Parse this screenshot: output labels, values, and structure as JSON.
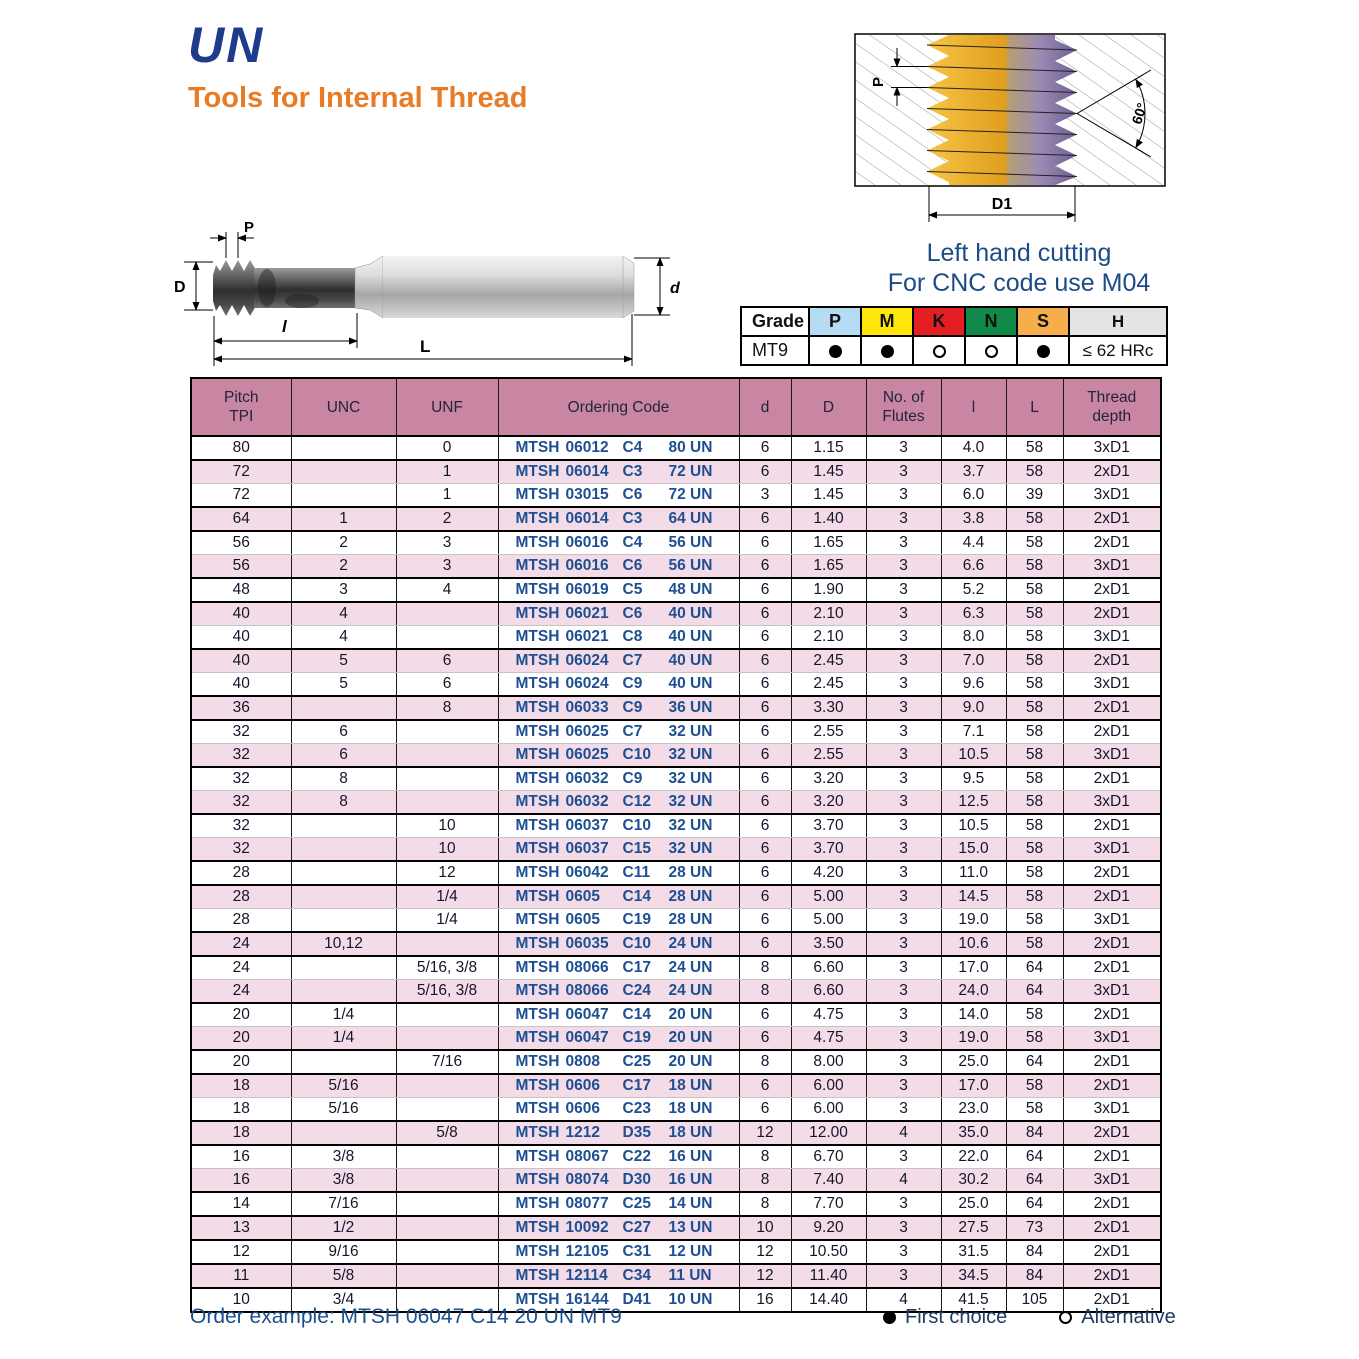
{
  "page": {
    "title": "UN",
    "subtitle": "Tools for Internal Thread",
    "note_line1": "Left hand cutting",
    "note_line2": "For CNC code use M04",
    "order_example": "Order example: MTSH 06047 C14 20 UN MT9",
    "legend": {
      "first_choice": "First choice",
      "alternative": "Alternative"
    }
  },
  "colors": {
    "title_blue": "#1e3c8c",
    "subtitle_orange": "#e97b24",
    "note_blue": "#1c4b86",
    "code_blue": "#1d4f92",
    "table_header_mauve": "#c986a3",
    "row_pink": "#f3dce7",
    "grade_p": "#b5dcf2",
    "grade_m": "#ffe60a",
    "grade_k": "#e41e22",
    "grade_n": "#108a49",
    "grade_s": "#f6ad4b",
    "grade_h": "#e4e4e4"
  },
  "diagram_tool": {
    "p": "P",
    "dia": "D",
    "thread_len": "l",
    "overall_len": "L",
    "shank_dia": "d"
  },
  "diagram_thread": {
    "p": "P",
    "angle": "60°",
    "d1": "D1"
  },
  "grade_table": {
    "headers": [
      "Grade",
      "P",
      "M",
      "K",
      "N",
      "S",
      "H"
    ],
    "header_colors": [
      "#ffffff",
      "#b5dcf2",
      "#ffe60a",
      "#e41e22",
      "#108a49",
      "#f6ad4b",
      "#e4e4e4"
    ],
    "row_label": "MT9",
    "values": [
      "filled",
      "filled",
      "open",
      "open",
      "filled"
    ],
    "hardness": "≤ 62 HRc"
  },
  "table": {
    "headers": [
      "Pitch\nTPI",
      "UNC",
      "UNF",
      "Ordering Code",
      "d",
      "D",
      "No. of\nFlutes",
      "l",
      "L",
      "Thread\ndepth"
    ],
    "rows": [
      {
        "tpi": "80",
        "unc": "",
        "unf": "0",
        "code": "MTSH 06012 C4 80 UN",
        "d": "6",
        "D": "1.15",
        "flutes": "3",
        "l": "4.0",
        "L": "58",
        "depth": "3xD1",
        "end": true
      },
      {
        "tpi": "72",
        "unc": "",
        "unf": "1",
        "code": "MTSH 06014 C3 72 UN",
        "d": "6",
        "D": "1.45",
        "flutes": "3",
        "l": "3.7",
        "L": "58",
        "depth": "2xD1",
        "end": false
      },
      {
        "tpi": "72",
        "unc": "",
        "unf": "1",
        "code": "MTSH 03015 C6 72 UN",
        "d": "3",
        "D": "1.45",
        "flutes": "3",
        "l": "6.0",
        "L": "39",
        "depth": "3xD1",
        "end": true
      },
      {
        "tpi": "64",
        "unc": "1",
        "unf": "2",
        "code": "MTSH 06014 C3 64 UN",
        "d": "6",
        "D": "1.40",
        "flutes": "3",
        "l": "3.8",
        "L": "58",
        "depth": "2xD1",
        "end": true
      },
      {
        "tpi": "56",
        "unc": "2",
        "unf": "3",
        "code": "MTSH 06016 C4 56 UN",
        "d": "6",
        "D": "1.65",
        "flutes": "3",
        "l": "4.4",
        "L": "58",
        "depth": "2xD1",
        "end": false
      },
      {
        "tpi": "56",
        "unc": "2",
        "unf": "3",
        "code": "MTSH 06016 C6 56 UN",
        "d": "6",
        "D": "1.65",
        "flutes": "3",
        "l": "6.6",
        "L": "58",
        "depth": "3xD1",
        "end": true
      },
      {
        "tpi": "48",
        "unc": "3",
        "unf": "4",
        "code": "MTSH 06019 C5 48 UN",
        "d": "6",
        "D": "1.90",
        "flutes": "3",
        "l": "5.2",
        "L": "58",
        "depth": "2xD1",
        "end": true
      },
      {
        "tpi": "40",
        "unc": "4",
        "unf": "",
        "code": "MTSH 06021 C6 40 UN",
        "d": "6",
        "D": "2.10",
        "flutes": "3",
        "l": "6.3",
        "L": "58",
        "depth": "2xD1",
        "end": false
      },
      {
        "tpi": "40",
        "unc": "4",
        "unf": "",
        "code": "MTSH 06021 C8 40 UN",
        "d": "6",
        "D": "2.10",
        "flutes": "3",
        "l": "8.0",
        "L": "58",
        "depth": "3xD1",
        "end": true
      },
      {
        "tpi": "40",
        "unc": "5",
        "unf": "6",
        "code": "MTSH 06024 C7 40 UN",
        "d": "6",
        "D": "2.45",
        "flutes": "3",
        "l": "7.0",
        "L": "58",
        "depth": "2xD1",
        "end": false
      },
      {
        "tpi": "40",
        "unc": "5",
        "unf": "6",
        "code": "MTSH 06024 C9 40 UN",
        "d": "6",
        "D": "2.45",
        "flutes": "3",
        "l": "9.6",
        "L": "58",
        "depth": "3xD1",
        "end": true
      },
      {
        "tpi": "36",
        "unc": "",
        "unf": "8",
        "code": "MTSH 06033 C9 36 UN",
        "d": "6",
        "D": "3.30",
        "flutes": "3",
        "l": "9.0",
        "L": "58",
        "depth": "2xD1",
        "end": true
      },
      {
        "tpi": "32",
        "unc": "6",
        "unf": "",
        "code": "MTSH 06025 C7 32 UN",
        "d": "6",
        "D": "2.55",
        "flutes": "3",
        "l": "7.1",
        "L": "58",
        "depth": "2xD1",
        "end": false
      },
      {
        "tpi": "32",
        "unc": "6",
        "unf": "",
        "code": "MTSH 06025 C10 32 UN",
        "d": "6",
        "D": "2.55",
        "flutes": "3",
        "l": "10.5",
        "L": "58",
        "depth": "3xD1",
        "end": true
      },
      {
        "tpi": "32",
        "unc": "8",
        "unf": "",
        "code": "MTSH 06032 C9 32 UN",
        "d": "6",
        "D": "3.20",
        "flutes": "3",
        "l": "9.5",
        "L": "58",
        "depth": "2xD1",
        "end": false
      },
      {
        "tpi": "32",
        "unc": "8",
        "unf": "",
        "code": "MTSH 06032 C12 32 UN",
        "d": "6",
        "D": "3.20",
        "flutes": "3",
        "l": "12.5",
        "L": "58",
        "depth": "3xD1",
        "end": true
      },
      {
        "tpi": "32",
        "unc": "",
        "unf": "10",
        "code": "MTSH 06037 C10 32 UN",
        "d": "6",
        "D": "3.70",
        "flutes": "3",
        "l": "10.5",
        "L": "58",
        "depth": "2xD1",
        "end": false
      },
      {
        "tpi": "32",
        "unc": "",
        "unf": "10",
        "code": "MTSH 06037 C15 32 UN",
        "d": "6",
        "D": "3.70",
        "flutes": "3",
        "l": "15.0",
        "L": "58",
        "depth": "3xD1",
        "end": true
      },
      {
        "tpi": "28",
        "unc": "",
        "unf": "12",
        "code": "MTSH 06042 C11 28 UN",
        "d": "6",
        "D": "4.20",
        "flutes": "3",
        "l": "11.0",
        "L": "58",
        "depth": "2xD1",
        "end": true
      },
      {
        "tpi": "28",
        "unc": "",
        "unf": "1/4",
        "code": "MTSH 0605 C14 28 UN",
        "d": "6",
        "D": "5.00",
        "flutes": "3",
        "l": "14.5",
        "L": "58",
        "depth": "2xD1",
        "end": false
      },
      {
        "tpi": "28",
        "unc": "",
        "unf": "1/4",
        "code": "MTSH 0605 C19 28 UN",
        "d": "6",
        "D": "5.00",
        "flutes": "3",
        "l": "19.0",
        "L": "58",
        "depth": "3xD1",
        "end": true
      },
      {
        "tpi": "24",
        "unc": "10,12",
        "unf": "",
        "code": "MTSH 06035 C10 24 UN",
        "d": "6",
        "D": "3.50",
        "flutes": "3",
        "l": "10.6",
        "L": "58",
        "depth": "2xD1",
        "end": true
      },
      {
        "tpi": "24",
        "unc": "",
        "unf": "5/16, 3/8",
        "code": "MTSH 08066 C17 24 UN",
        "d": "8",
        "D": "6.60",
        "flutes": "3",
        "l": "17.0",
        "L": "64",
        "depth": "2xD1",
        "end": false
      },
      {
        "tpi": "24",
        "unc": "",
        "unf": "5/16, 3/8",
        "code": "MTSH 08066 C24 24 UN",
        "d": "8",
        "D": "6.60",
        "flutes": "3",
        "l": "24.0",
        "L": "64",
        "depth": "3xD1",
        "end": true
      },
      {
        "tpi": "20",
        "unc": "1/4",
        "unf": "",
        "code": "MTSH 06047 C14 20 UN",
        "d": "6",
        "D": "4.75",
        "flutes": "3",
        "l": "14.0",
        "L": "58",
        "depth": "2xD1",
        "end": false
      },
      {
        "tpi": "20",
        "unc": "1/4",
        "unf": "",
        "code": "MTSH 06047 C19 20 UN",
        "d": "6",
        "D": "4.75",
        "flutes": "3",
        "l": "19.0",
        "L": "58",
        "depth": "3xD1",
        "end": true
      },
      {
        "tpi": "20",
        "unc": "",
        "unf": "7/16",
        "code": "MTSH 0808 C25 20 UN",
        "d": "8",
        "D": "8.00",
        "flutes": "3",
        "l": "25.0",
        "L": "64",
        "depth": "2xD1",
        "end": true
      },
      {
        "tpi": "18",
        "unc": "5/16",
        "unf": "",
        "code": "MTSH 0606 C17 18 UN",
        "d": "6",
        "D": "6.00",
        "flutes": "3",
        "l": "17.0",
        "L": "58",
        "depth": "2xD1",
        "end": false
      },
      {
        "tpi": "18",
        "unc": "5/16",
        "unf": "",
        "code": "MTSH 0606 C23 18 UN",
        "d": "6",
        "D": "6.00",
        "flutes": "3",
        "l": "23.0",
        "L": "58",
        "depth": "3xD1",
        "end": true
      },
      {
        "tpi": "18",
        "unc": "",
        "unf": "5/8",
        "code": "MTSH 1212 D35 18 UN",
        "d": "12",
        "D": "12.00",
        "flutes": "4",
        "l": "35.0",
        "L": "84",
        "depth": "2xD1",
        "end": true
      },
      {
        "tpi": "16",
        "unc": "3/8",
        "unf": "",
        "code": "MTSH 08067 C22 16 UN",
        "d": "8",
        "D": "6.70",
        "flutes": "3",
        "l": "22.0",
        "L": "64",
        "depth": "2xD1",
        "end": false
      },
      {
        "tpi": "16",
        "unc": "3/8",
        "unf": "",
        "code": "MTSH 08074 D30 16 UN",
        "d": "8",
        "D": "7.40",
        "flutes": "4",
        "l": "30.2",
        "L": "64",
        "depth": "3xD1",
        "end": true
      },
      {
        "tpi": "14",
        "unc": "7/16",
        "unf": "",
        "code": "MTSH 08077 C25 14 UN",
        "d": "8",
        "D": "7.70",
        "flutes": "3",
        "l": "25.0",
        "L": "64",
        "depth": "2xD1",
        "end": true
      },
      {
        "tpi": "13",
        "unc": "1/2",
        "unf": "",
        "code": "MTSH 10092 C27 13 UN",
        "d": "10",
        "D": "9.20",
        "flutes": "3",
        "l": "27.5",
        "L": "73",
        "depth": "2xD1",
        "end": true
      },
      {
        "tpi": "12",
        "unc": "9/16",
        "unf": "",
        "code": "MTSH 12105 C31 12 UN",
        "d": "12",
        "D": "10.50",
        "flutes": "3",
        "l": "31.5",
        "L": "84",
        "depth": "2xD1",
        "end": true
      },
      {
        "tpi": "11",
        "unc": "5/8",
        "unf": "",
        "code": "MTSH 12114 C34 11 UN",
        "d": "12",
        "D": "11.40",
        "flutes": "3",
        "l": "34.5",
        "L": "84",
        "depth": "2xD1",
        "end": true
      },
      {
        "tpi": "10",
        "unc": "3/4",
        "unf": "",
        "code": "MTSH 16144 D41 10 UN",
        "d": "16",
        "D": "14.40",
        "flutes": "4",
        "l": "41.5",
        "L": "105",
        "depth": "2xD1",
        "end": false
      }
    ]
  }
}
